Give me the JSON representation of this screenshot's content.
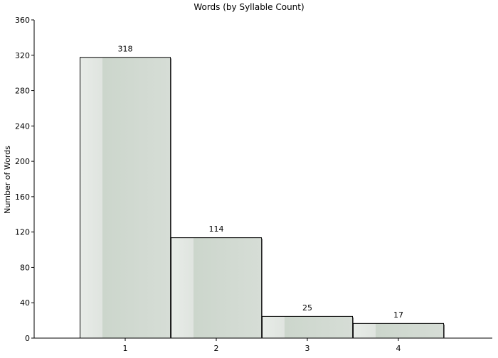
{
  "chart_data": {
    "type": "bar",
    "title": "Words (by Syllable Count)",
    "xlabel": "",
    "ylabel": "Number of Words",
    "categories": [
      "1",
      "2",
      "3",
      "4"
    ],
    "values": [
      318,
      114,
      25,
      17
    ],
    "data_labels": [
      "318",
      "114",
      "25",
      "17"
    ],
    "ylim": [
      0,
      360
    ],
    "yticks": [
      0,
      40,
      80,
      120,
      160,
      200,
      240,
      280,
      320,
      360
    ],
    "ytick_labels": [
      "0",
      "40",
      "80",
      "120",
      "160",
      "200",
      "240",
      "280",
      "320",
      "360"
    ],
    "grid": false,
    "legend": "none",
    "colors": {
      "bar_fill_light": "#e8ece8",
      "bar_fill_mid": "#d4dcd4",
      "bar_fill_dark": "#c8d2c8",
      "bar_stroke": "#000000",
      "axis": "#000000"
    }
  }
}
